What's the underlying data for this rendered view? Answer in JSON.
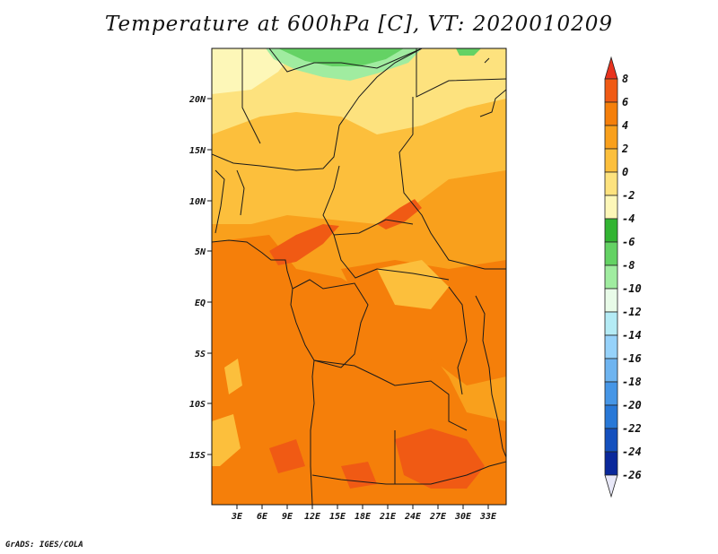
{
  "title": "Temperature at 600hPa [C], VT: 2020010209",
  "credit": "GrADS: IGES/COLA",
  "map": {
    "lat_labels": [
      "20N",
      "15N",
      "10N",
      "5N",
      "EQ",
      "5S",
      "10S",
      "15S"
    ],
    "lon_labels": [
      "3E",
      "6E",
      "9E",
      "12E",
      "15E",
      "18E",
      "21E",
      "24E",
      "27E",
      "30E",
      "33E"
    ]
  },
  "colorbar": {
    "labels": [
      "8",
      "6",
      "4",
      "2",
      "0",
      "-2",
      "-4",
      "-6",
      "-8",
      "-10",
      "-12",
      "-14",
      "-16",
      "-18",
      "-20",
      "-22",
      "-24",
      "-26"
    ],
    "colors": [
      "#e8321e",
      "#f05a14",
      "#f57f0a",
      "#f9a01c",
      "#fcbf3c",
      "#fde27e",
      "#fdf7b8",
      "#32b432",
      "#64d264",
      "#a0eca0",
      "#e8fbe8",
      "#b4ebf5",
      "#96d2fa",
      "#6eb4f0",
      "#4696e6",
      "#2878d7",
      "#1450be",
      "#0a289b",
      "#0a0a5a"
    ]
  },
  "colors": {
    "base": "#f9a01c",
    "warm": "#f57f0a",
    "hot": "#f05a14",
    "cool": "#fcbf3c",
    "cooler": "#fde27e",
    "coolest": "#fdf7b8",
    "green": "#64d264",
    "lightgreen": "#a0eca0"
  }
}
